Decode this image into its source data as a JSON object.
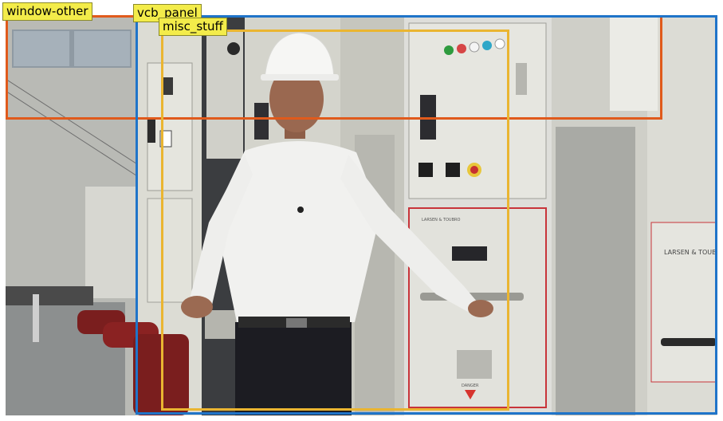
{
  "scene": {
    "panel_brand_left": "LARSEN & TOUBRO",
    "panel_brand_right": "LARSEN & TOUBRO",
    "warning_label": "DANGER",
    "colors": {
      "panel": "#dcdcd4",
      "red_trim": "#c8343a",
      "bushing": "#7a1e1e",
      "shirt": "#f1f1ef",
      "trousers": "#1c1c22",
      "helmet": "#f6f6f4"
    }
  },
  "annotations": [
    {
      "label": "window-other",
      "color": "#e05a1c"
    },
    {
      "label": "vcb_panel",
      "color": "#1f74c9"
    },
    {
      "label": "misc_stuff",
      "color": "#eab531"
    }
  ],
  "tag_bg": "#f3ec4a"
}
